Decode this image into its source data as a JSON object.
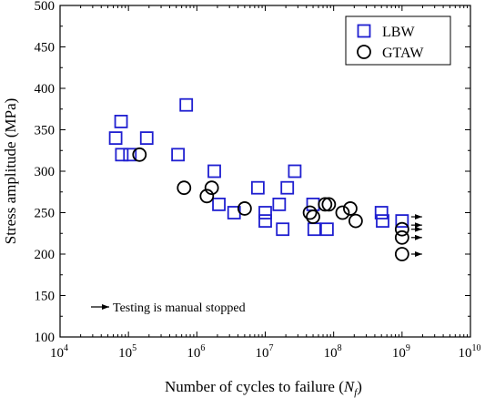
{
  "chart_data": {
    "type": "scatter",
    "title": "",
    "xlabel": {
      "prefix": "Number of cycles to failure (",
      "var": "N",
      "sub": "f",
      "suffix": ")"
    },
    "ylabel": "Stress amplitude (MPa)",
    "x_scale": "log",
    "xlim": [
      10000,
      10000000000
    ],
    "ylim": [
      100,
      500
    ],
    "x_ticks": [
      {
        "value": 10000,
        "base": "10",
        "exp": "4"
      },
      {
        "value": 100000,
        "base": "10",
        "exp": "5"
      },
      {
        "value": 1000000,
        "base": "10",
        "exp": "6"
      },
      {
        "value": 10000000,
        "base": "10",
        "exp": "7"
      },
      {
        "value": 100000000,
        "base": "10",
        "exp": "8"
      },
      {
        "value": 1000000000,
        "base": "10",
        "exp": "9"
      },
      {
        "value": 10000000000,
        "base": "10",
        "exp": "10"
      }
    ],
    "y_ticks": [
      100,
      150,
      200,
      250,
      300,
      350,
      400,
      450,
      500
    ],
    "grid": false,
    "legend_position": "top-right",
    "series": [
      {
        "name": "LBW",
        "marker": "square",
        "color": "#1f1fd0",
        "points": [
          {
            "x": 65000,
            "y": 340
          },
          {
            "x": 78000,
            "y": 360
          },
          {
            "x": 80000,
            "y": 320
          },
          {
            "x": 105000,
            "y": 320
          },
          {
            "x": 185000,
            "y": 340
          },
          {
            "x": 530000,
            "y": 320
          },
          {
            "x": 700000,
            "y": 380
          },
          {
            "x": 1800000,
            "y": 300
          },
          {
            "x": 2100000,
            "y": 260
          },
          {
            "x": 3500000,
            "y": 250
          },
          {
            "x": 7800000,
            "y": 280
          },
          {
            "x": 10000000,
            "y": 250
          },
          {
            "x": 10000000,
            "y": 240
          },
          {
            "x": 16000000,
            "y": 260
          },
          {
            "x": 18000000,
            "y": 230
          },
          {
            "x": 21000000,
            "y": 280
          },
          {
            "x": 27000000,
            "y": 300
          },
          {
            "x": 50000000,
            "y": 260
          },
          {
            "x": 52000000,
            "y": 230
          },
          {
            "x": 80000000,
            "y": 230
          },
          {
            "x": 500000000,
            "y": 250
          },
          {
            "x": 520000000,
            "y": 240
          },
          {
            "x": 1000000000,
            "y": 240
          }
        ]
      },
      {
        "name": "GTAW",
        "marker": "circle",
        "color": "#000000",
        "points": [
          {
            "x": 145000,
            "y": 320
          },
          {
            "x": 650000,
            "y": 280
          },
          {
            "x": 1400000,
            "y": 270
          },
          {
            "x": 1650000,
            "y": 280
          },
          {
            "x": 5000000,
            "y": 255
          },
          {
            "x": 45000000,
            "y": 250
          },
          {
            "x": 50000000,
            "y": 245
          },
          {
            "x": 75000000,
            "y": 260
          },
          {
            "x": 85000000,
            "y": 260
          },
          {
            "x": 135000000,
            "y": 250
          },
          {
            "x": 175000000,
            "y": 255
          },
          {
            "x": 210000000,
            "y": 240
          },
          {
            "x": 1000000000,
            "y": 230
          },
          {
            "x": 1000000000,
            "y": 220
          },
          {
            "x": 1000000000,
            "y": 200
          }
        ]
      }
    ],
    "runout_arrows": [
      {
        "x": 1000000000,
        "y": 245
      },
      {
        "x": 1000000000,
        "y": 235
      },
      {
        "x": 1000000000,
        "y": 230
      },
      {
        "x": 1000000000,
        "y": 220
      },
      {
        "x": 1000000000,
        "y": 200
      }
    ],
    "annotation": "Testing is manual stopped"
  }
}
